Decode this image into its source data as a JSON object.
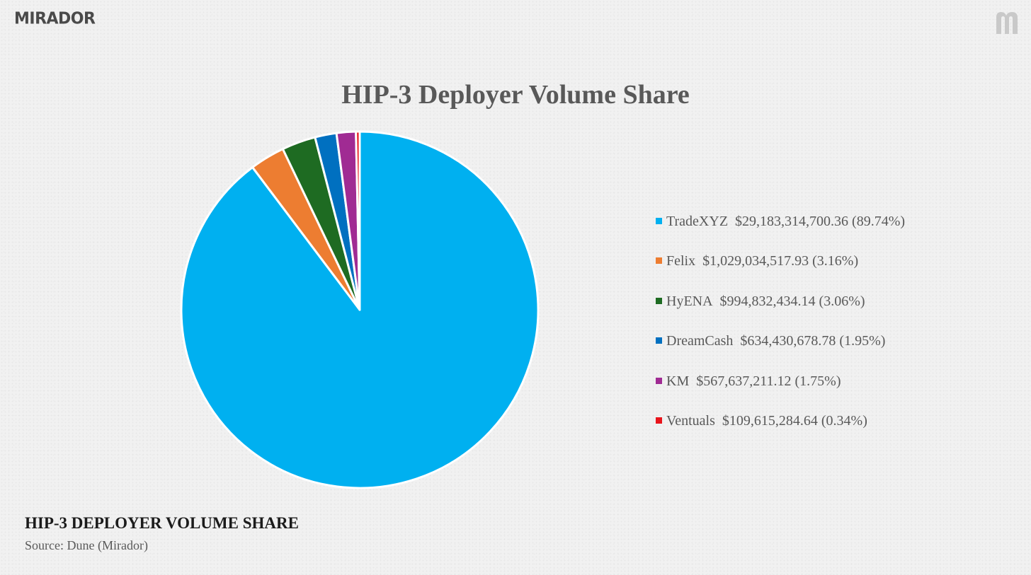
{
  "brand": {
    "name": "MIRADOR"
  },
  "footer": {
    "title": "HIP-3 DEPLOYER VOLUME SHARE",
    "source": "Source: Dune (Mirador)"
  },
  "chart_data": {
    "type": "pie",
    "title": "HIP-3 Deployer Volume Share",
    "legend_position": "right",
    "slices": [
      {
        "name": "TradeXYZ",
        "value_label": "$29,183,314,700.36 (89.74%)",
        "value": 29183314700.36,
        "percent": 89.74,
        "color": "#00b0f0"
      },
      {
        "name": "Felix",
        "value_label": "$1,029,034,517.93 (3.16%)",
        "value": 1029034517.93,
        "percent": 3.16,
        "color": "#ed7d31"
      },
      {
        "name": "HyENA",
        "value_label": "$994,832,434.14 (3.06%)",
        "value": 994832434.14,
        "percent": 3.06,
        "color": "#1e6b22"
      },
      {
        "name": "DreamCash",
        "value_label": "$634,430,678.78 (1.95%)",
        "value": 634430678.78,
        "percent": 1.95,
        "color": "#0070c0"
      },
      {
        "name": "KM",
        "value_label": "$567,637,211.12 (1.75%)",
        "value": 567637211.12,
        "percent": 1.75,
        "color": "#a02b93"
      },
      {
        "name": "Ventuals",
        "value_label": "$109,615,284.64 (0.34%)",
        "value": 109615284.64,
        "percent": 0.34,
        "color": "#e8141b"
      }
    ]
  }
}
